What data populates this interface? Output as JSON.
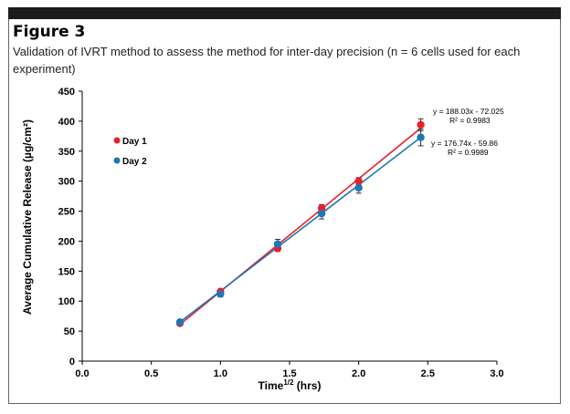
{
  "figure": {
    "label": "Figure 3",
    "caption": "Validation of IVRT method to assess the method for inter-day precision (n = 6 cells used for each experiment)"
  },
  "chart_data": {
    "type": "scatter",
    "xlabel_main": "Time",
    "xlabel_sup": "1/2",
    "xlabel_rest": " (hrs)",
    "ylabel": "Average Cumulative Release (µg/cm²)",
    "xlim": [
      0,
      3
    ],
    "ylim": [
      0,
      450
    ],
    "x_ticks": [
      0,
      0.5,
      1,
      1.5,
      2,
      2.5,
      3
    ],
    "x_tick_labels": [
      "0.0",
      "0.5",
      "1.0",
      "1.5",
      "2.0",
      "2.5",
      "3.0"
    ],
    "y_ticks": [
      0,
      50,
      100,
      150,
      200,
      250,
      300,
      350,
      400,
      450
    ],
    "y_tick_labels": [
      "0",
      "50",
      "100",
      "150",
      "200",
      "250",
      "300",
      "350",
      "400",
      "450"
    ],
    "series": [
      {
        "name": "Day 1",
        "color": "#e8202a",
        "x": [
          0.707,
          1.0,
          1.414,
          1.732,
          2.0,
          2.449
        ],
        "y": [
          63,
          116,
          188,
          255,
          300,
          394
        ],
        "err": [
          3,
          3,
          5,
          6,
          6,
          10
        ],
        "fit_equation": "y = 188.03x - 72.025",
        "r2_label": "R² = 0.9983",
        "slope": 188.03,
        "intercept": -72.025
      },
      {
        "name": "Day 2",
        "color": "#1f77b4",
        "x": [
          0.707,
          1.0,
          1.414,
          1.732,
          2.0,
          2.449
        ],
        "y": [
          65,
          112,
          195,
          246,
          289,
          373
        ],
        "err": [
          4,
          5,
          8,
          9,
          9,
          14
        ],
        "fit_equation": "y = 176.74x - 59.86",
        "r2_label": "R² = 0.9989",
        "slope": 176.74,
        "intercept": -59.86
      }
    ],
    "legend_position": "top-left"
  }
}
